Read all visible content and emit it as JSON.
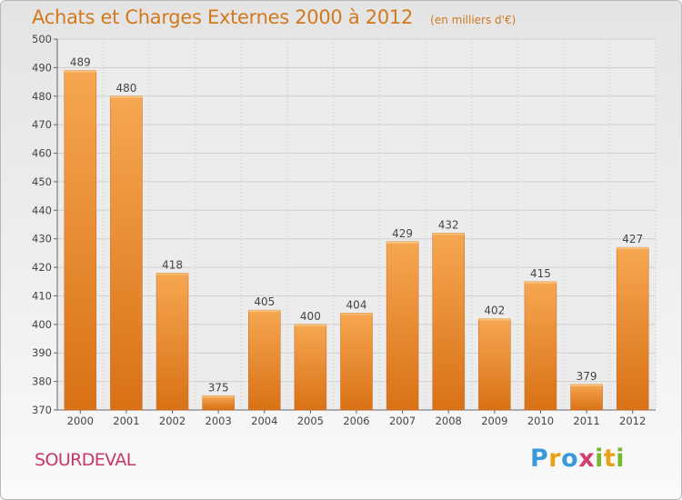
{
  "header": {
    "title": "Achats et Charges Externes 2000 à 2012",
    "subtitle": "(en milliers d'€)"
  },
  "footer": {
    "commune": "SOURDEVAL",
    "logo": {
      "letters": [
        "P",
        "r",
        "o",
        "x",
        "i",
        "t",
        "i"
      ],
      "colors": [
        "#3a9ad9",
        "#e8a21a",
        "#3a9ad9",
        "#d43f6f",
        "#7ab62f",
        "#e8a21a",
        "#7ab62f"
      ]
    }
  },
  "chart_data": {
    "type": "bar",
    "title": "Achats et Charges Externes 2000 à 2012",
    "subtitle": "(en milliers d'€)",
    "categories": [
      "2000",
      "2001",
      "2002",
      "2003",
      "2004",
      "2005",
      "2006",
      "2007",
      "2008",
      "2009",
      "2010",
      "2011",
      "2012"
    ],
    "values": [
      489,
      480,
      418,
      375,
      405,
      400,
      404,
      429,
      432,
      402,
      415,
      379,
      427
    ],
    "ylim": [
      370,
      500
    ],
    "yticks": [
      370,
      380,
      390,
      400,
      410,
      420,
      430,
      440,
      450,
      460,
      470,
      480,
      490,
      500
    ],
    "grid": true,
    "bar_colors": {
      "top": "#f6a751",
      "bottom": "#d97116"
    }
  }
}
